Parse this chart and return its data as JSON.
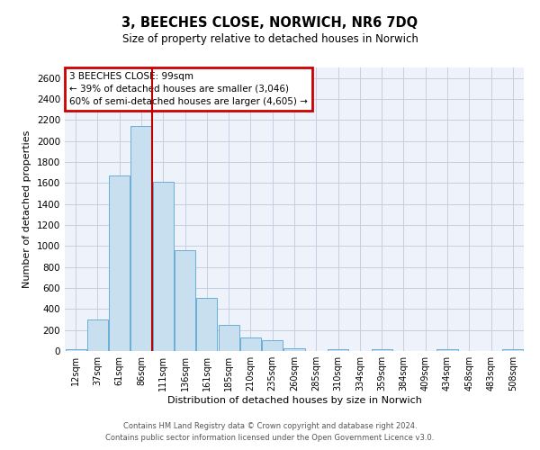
{
  "title": "3, BEECHES CLOSE, NORWICH, NR6 7DQ",
  "subtitle": "Size of property relative to detached houses in Norwich",
  "xlabel": "Distribution of detached houses by size in Norwich",
  "ylabel": "Number of detached properties",
  "bar_labels": [
    "12sqm",
    "37sqm",
    "61sqm",
    "86sqm",
    "111sqm",
    "136sqm",
    "161sqm",
    "185sqm",
    "210sqm",
    "235sqm",
    "260sqm",
    "285sqm",
    "310sqm",
    "334sqm",
    "359sqm",
    "384sqm",
    "409sqm",
    "434sqm",
    "458sqm",
    "483sqm",
    "508sqm"
  ],
  "bar_values": [
    20,
    300,
    1670,
    2140,
    1610,
    960,
    510,
    250,
    130,
    100,
    30,
    0,
    20,
    0,
    20,
    0,
    0,
    20,
    0,
    0,
    20
  ],
  "bar_color": "#c8dff0",
  "bar_edge_color": "#6aaed6",
  "vline_index": 4,
  "vline_color": "#bb0000",
  "ylim": [
    0,
    2700
  ],
  "yticks": [
    0,
    200,
    400,
    600,
    800,
    1000,
    1200,
    1400,
    1600,
    1800,
    2000,
    2200,
    2400,
    2600
  ],
  "annotation_title": "3 BEECHES CLOSE: 99sqm",
  "annotation_line1": "← 39% of detached houses are smaller (3,046)",
  "annotation_line2": "60% of semi-detached houses are larger (4,605) →",
  "annotation_box_color": "#cc0000",
  "footer1": "Contains HM Land Registry data © Crown copyright and database right 2024.",
  "footer2": "Contains public sector information licensed under the Open Government Licence v3.0.",
  "bg_color": "#eef2fa",
  "grid_color": "#c5cfe0"
}
